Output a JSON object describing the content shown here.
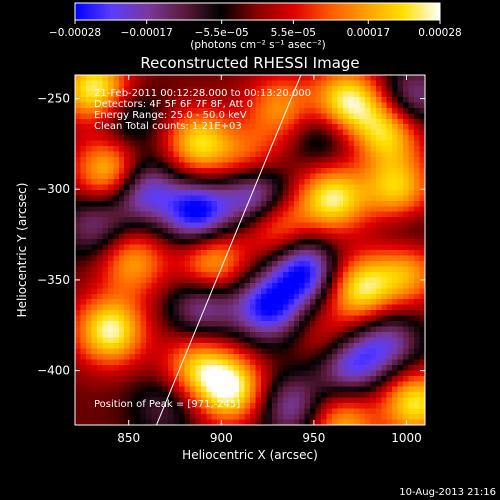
{
  "chart_data": {
    "type": "heatmap",
    "title": "Reconstructed RHESSI Image",
    "xlabel": "Heliocentric X (arcsec)",
    "ylabel": "Heliocentric Y (arcsec)",
    "xlim": [
      821,
      1010
    ],
    "ylim": [
      -430,
      -237
    ],
    "xticks": [
      850,
      900,
      950,
      1000
    ],
    "xtick_labels": [
      "850",
      "900",
      "950",
      "1000"
    ],
    "yticks": [
      -250,
      -300,
      -350,
      -400
    ],
    "ytick_labels": [
      "−250",
      "−300",
      "−350",
      "−400"
    ],
    "colorbar": {
      "range": [
        -0.00028,
        0.00028
      ],
      "ticks": [
        -0.00028,
        -0.00017,
        -5.5e-05,
        5.5e-05,
        0.00017,
        0.00028
      ],
      "tick_labels": [
        "−0.00028",
        "−0.00017",
        "−5.5e−05",
        "5.5e−05",
        "0.00017",
        "0.00028"
      ],
      "units": "(photons cm⁻² s⁻¹ asec⁻²)",
      "stops": [
        "#0000ff",
        "#5a3cff",
        "#7a3a9a",
        "#5c1a3a",
        "#000000",
        "#8a0000",
        "#e00000",
        "#ff5a00",
        "#ffa000",
        "#ffe000",
        "#ffffff"
      ]
    },
    "annotations": [
      "21-Feb-2011 00:12:28.000 to 00:13:20.000",
      "Detectors: 4F 5F 6F 7F 8F, Att 0",
      "Energy Range: 25.0 - 50.0 keV",
      "Clean     Total counts: 1.21E+03"
    ],
    "peak_label": "Position of Peak = [971,-245]",
    "limb_line": {
      "x": [
        865,
        943
      ],
      "y": [
        -430,
        -237
      ]
    },
    "grid": false,
    "peaks": [
      {
        "x": 832,
        "y": -245,
        "v": 1.0
      },
      {
        "x": 840,
        "y": -290,
        "v": 0.9
      },
      {
        "x": 888,
        "y": -275,
        "v": 0.85
      },
      {
        "x": 915,
        "y": -285,
        "v": 0.55
      },
      {
        "x": 895,
        "y": -340,
        "v": 0.75
      },
      {
        "x": 930,
        "y": -320,
        "v": 0.6
      },
      {
        "x": 968,
        "y": -252,
        "v": 1.0
      },
      {
        "x": 990,
        "y": -268,
        "v": 0.85
      },
      {
        "x": 960,
        "y": -305,
        "v": 0.95
      },
      {
        "x": 995,
        "y": -300,
        "v": 0.8
      },
      {
        "x": 975,
        "y": -355,
        "v": 0.9
      },
      {
        "x": 1000,
        "y": -345,
        "v": 0.7
      },
      {
        "x": 960,
        "y": -385,
        "v": 0.5
      },
      {
        "x": 840,
        "y": -378,
        "v": 1.0
      },
      {
        "x": 852,
        "y": -340,
        "v": 0.65
      },
      {
        "x": 905,
        "y": -410,
        "v": 1.0
      },
      {
        "x": 887,
        "y": -398,
        "v": 0.7
      },
      {
        "x": 1005,
        "y": -418,
        "v": 0.9
      },
      {
        "x": 965,
        "y": -430,
        "v": 0.7
      },
      {
        "x": 932,
        "y": -255,
        "v": 0.6
      },
      {
        "x": 848,
        "y": -262,
        "v": -0.4
      },
      {
        "x": 857,
        "y": -300,
        "v": -0.8
      },
      {
        "x": 887,
        "y": -313,
        "v": -1.0
      },
      {
        "x": 918,
        "y": -302,
        "v": -0.9
      },
      {
        "x": 945,
        "y": -345,
        "v": -0.95
      },
      {
        "x": 925,
        "y": -365,
        "v": -0.9
      },
      {
        "x": 890,
        "y": -365,
        "v": -0.6
      },
      {
        "x": 968,
        "y": -395,
        "v": -0.9
      },
      {
        "x": 990,
        "y": -385,
        "v": -0.6
      },
      {
        "x": 1003,
        "y": -250,
        "v": -0.6
      },
      {
        "x": 938,
        "y": -420,
        "v": -0.6
      },
      {
        "x": 832,
        "y": -320,
        "v": -0.5
      },
      {
        "x": 1000,
        "y": -325,
        "v": -0.3
      },
      {
        "x": 870,
        "y": -420,
        "v": -0.35
      },
      {
        "x": 955,
        "y": -270,
        "v": -0.4
      }
    ]
  },
  "footer": {
    "timestamp": "10-Aug-2013 21:16"
  }
}
